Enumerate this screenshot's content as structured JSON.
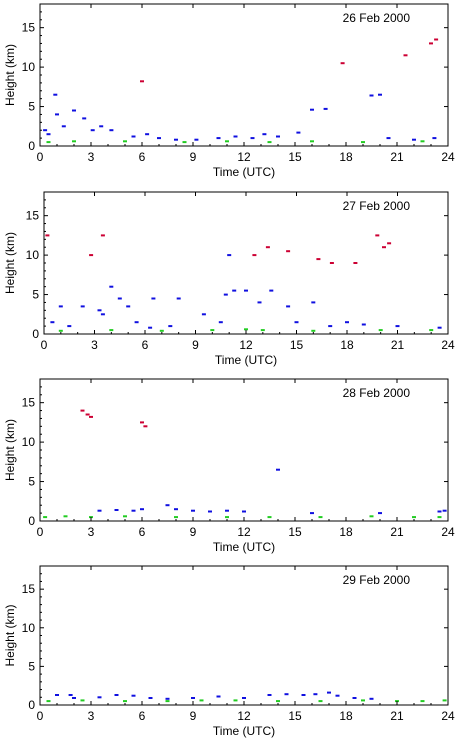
{
  "chart_data": [
    {
      "type": "scatter",
      "title": "26 Feb 2000",
      "xlabel": "Time (UTC)",
      "ylabel": "Height (km)",
      "xlim": [
        0,
        24
      ],
      "ylim": [
        0,
        18
      ],
      "xticks": [
        0,
        3,
        6,
        9,
        12,
        15,
        18,
        21,
        24
      ],
      "yticks": [
        0,
        5,
        10,
        15
      ],
      "series": [
        {
          "color": "#1010e0",
          "points": [
            [
              0.3,
              2.0
            ],
            [
              0.5,
              1.5
            ],
            [
              0.9,
              6.5
            ],
            [
              1.0,
              4.0
            ],
            [
              1.4,
              2.5
            ],
            [
              2.0,
              4.5
            ],
            [
              2.6,
              3.5
            ],
            [
              3.1,
              2.0
            ],
            [
              3.6,
              2.5
            ],
            [
              4.2,
              2.0
            ],
            [
              5.5,
              1.2
            ],
            [
              6.3,
              1.5
            ],
            [
              7.0,
              1.0
            ],
            [
              8.0,
              0.8
            ],
            [
              9.2,
              0.8
            ],
            [
              10.5,
              1.0
            ],
            [
              11.5,
              1.2
            ],
            [
              12.5,
              1.0
            ],
            [
              13.2,
              1.5
            ],
            [
              14.0,
              1.2
            ],
            [
              15.2,
              1.7
            ],
            [
              16.0,
              4.6
            ],
            [
              16.8,
              4.7
            ],
            [
              19.5,
              6.4
            ],
            [
              20.0,
              6.5
            ],
            [
              20.5,
              1.0
            ],
            [
              22.0,
              0.8
            ],
            [
              23.2,
              1.0
            ]
          ]
        },
        {
          "color": "#cc0033",
          "points": [
            [
              6.0,
              8.2
            ],
            [
              17.8,
              10.5
            ],
            [
              21.5,
              11.5
            ],
            [
              23.3,
              13.5
            ],
            [
              23.0,
              13.0
            ]
          ]
        },
        {
          "color": "#22cc22",
          "points": [
            [
              0.5,
              0.5
            ],
            [
              2.0,
              0.6
            ],
            [
              5.0,
              0.6
            ],
            [
              8.5,
              0.5
            ],
            [
              11.0,
              0.6
            ],
            [
              13.5,
              0.5
            ],
            [
              16.0,
              0.6
            ],
            [
              19.0,
              0.5
            ],
            [
              22.5,
              0.6
            ]
          ]
        }
      ]
    },
    {
      "type": "scatter",
      "title": "27 Feb 2000",
      "xlabel": "Time (UTC)",
      "ylabel": "Height (km)",
      "xlim": [
        0,
        24
      ],
      "ylim": [
        0,
        18
      ],
      "xticks": [
        0,
        3,
        6,
        9,
        12,
        15,
        18,
        21,
        24
      ],
      "yticks": [
        0,
        5,
        10,
        15
      ],
      "series": [
        {
          "color": "#1010e0",
          "points": [
            [
              0.5,
              1.5
            ],
            [
              1.0,
              3.5
            ],
            [
              1.5,
              1.0
            ],
            [
              2.3,
              3.5
            ],
            [
              3.3,
              3.0
            ],
            [
              3.5,
              2.5
            ],
            [
              4.0,
              6.0
            ],
            [
              4.5,
              4.5
            ],
            [
              5.0,
              3.5
            ],
            [
              5.5,
              1.5
            ],
            [
              6.5,
              4.5
            ],
            [
              6.3,
              0.8
            ],
            [
              7.5,
              1.0
            ],
            [
              8.0,
              4.5
            ],
            [
              9.5,
              2.5
            ],
            [
              10.5,
              1.5
            ],
            [
              10.8,
              5.0
            ],
            [
              11.3,
              5.5
            ],
            [
              11.0,
              10.0
            ],
            [
              12.0,
              5.5
            ],
            [
              12.8,
              4.0
            ],
            [
              13.5,
              5.5
            ],
            [
              14.5,
              3.5
            ],
            [
              15.0,
              1.5
            ],
            [
              16.0,
              4.0
            ],
            [
              17.0,
              1.0
            ],
            [
              18.0,
              1.5
            ],
            [
              19.0,
              1.2
            ],
            [
              21.0,
              1.0
            ],
            [
              23.5,
              0.8
            ]
          ]
        },
        {
          "color": "#cc0033",
          "points": [
            [
              0.2,
              12.5
            ],
            [
              2.8,
              10.0
            ],
            [
              3.5,
              12.5
            ],
            [
              12.5,
              10.0
            ],
            [
              13.3,
              11.0
            ],
            [
              14.5,
              10.5
            ],
            [
              16.3,
              9.5
            ],
            [
              17.1,
              9.0
            ],
            [
              18.5,
              9.0
            ],
            [
              19.8,
              12.5
            ],
            [
              20.2,
              11.0
            ],
            [
              20.5,
              11.5
            ]
          ]
        },
        {
          "color": "#22cc22",
          "points": [
            [
              1.0,
              0.4
            ],
            [
              4.0,
              0.5
            ],
            [
              7.0,
              0.4
            ],
            [
              10.0,
              0.5
            ],
            [
              12.0,
              0.6
            ],
            [
              13.0,
              0.5
            ],
            [
              16.0,
              0.4
            ],
            [
              20.0,
              0.5
            ],
            [
              23.0,
              0.5
            ]
          ]
        }
      ]
    },
    {
      "type": "scatter",
      "title": "28 Feb 2000",
      "xlabel": "Time (UTC)",
      "ylabel": "Height (km)",
      "xlim": [
        0,
        24
      ],
      "ylim": [
        0,
        18
      ],
      "xticks": [
        0,
        3,
        6,
        9,
        12,
        15,
        18,
        21,
        24
      ],
      "yticks": [
        0,
        5,
        10,
        15
      ],
      "series": [
        {
          "color": "#1010e0",
          "points": [
            [
              3.5,
              1.3
            ],
            [
              4.5,
              1.4
            ],
            [
              5.5,
              1.3
            ],
            [
              6.0,
              1.5
            ],
            [
              7.5,
              2.0
            ],
            [
              8.0,
              1.5
            ],
            [
              9.0,
              1.3
            ],
            [
              10.0,
              1.2
            ],
            [
              11.0,
              1.3
            ],
            [
              12.0,
              1.2
            ],
            [
              14.0,
              6.5
            ],
            [
              16.0,
              1.0
            ],
            [
              20.0,
              1.0
            ],
            [
              23.5,
              1.2
            ],
            [
              23.8,
              1.3
            ]
          ]
        },
        {
          "color": "#cc0033",
          "points": [
            [
              2.5,
              14.0
            ],
            [
              2.8,
              13.5
            ],
            [
              3.0,
              13.2
            ],
            [
              6.0,
              12.5
            ],
            [
              6.2,
              12.0
            ]
          ]
        },
        {
          "color": "#22cc22",
          "points": [
            [
              0.3,
              0.5
            ],
            [
              1.5,
              0.6
            ],
            [
              3.0,
              0.5
            ],
            [
              5.0,
              0.6
            ],
            [
              8.0,
              0.5
            ],
            [
              11.0,
              0.5
            ],
            [
              13.5,
              0.5
            ],
            [
              16.5,
              0.5
            ],
            [
              19.5,
              0.6
            ],
            [
              22.0,
              0.5
            ],
            [
              23.5,
              0.5
            ]
          ]
        }
      ]
    },
    {
      "type": "scatter",
      "title": "29 Feb 2000",
      "xlabel": "Time (UTC)",
      "ylabel": "Height (km)",
      "xlim": [
        0,
        24
      ],
      "ylim": [
        0,
        18
      ],
      "xticks": [
        0,
        3,
        6,
        9,
        12,
        15,
        18,
        21,
        24
      ],
      "yticks": [
        0,
        5,
        10,
        15
      ],
      "series": [
        {
          "color": "#1010e0",
          "points": [
            [
              1.0,
              1.3
            ],
            [
              1.8,
              1.3
            ],
            [
              2.0,
              0.9
            ],
            [
              3.5,
              1.0
            ],
            [
              4.5,
              1.3
            ],
            [
              5.5,
              1.2
            ],
            [
              6.5,
              0.9
            ],
            [
              7.5,
              0.8
            ],
            [
              9.0,
              0.9
            ],
            [
              10.5,
              1.1
            ],
            [
              12.0,
              0.9
            ],
            [
              13.5,
              1.3
            ],
            [
              14.5,
              1.4
            ],
            [
              15.5,
              1.3
            ],
            [
              16.2,
              1.4
            ],
            [
              17.0,
              1.6
            ],
            [
              17.5,
              1.2
            ],
            [
              18.5,
              0.9
            ],
            [
              19.5,
              0.8
            ]
          ]
        },
        {
          "color": "#22cc22",
          "points": [
            [
              0.5,
              0.5
            ],
            [
              2.5,
              0.6
            ],
            [
              5.0,
              0.5
            ],
            [
              7.5,
              0.5
            ],
            [
              9.5,
              0.6
            ],
            [
              11.5,
              0.6
            ],
            [
              14.0,
              0.5
            ],
            [
              16.5,
              0.5
            ],
            [
              19.0,
              0.6
            ],
            [
              21.0,
              0.5
            ],
            [
              22.5,
              0.5
            ],
            [
              23.8,
              0.6
            ]
          ]
        }
      ]
    }
  ]
}
